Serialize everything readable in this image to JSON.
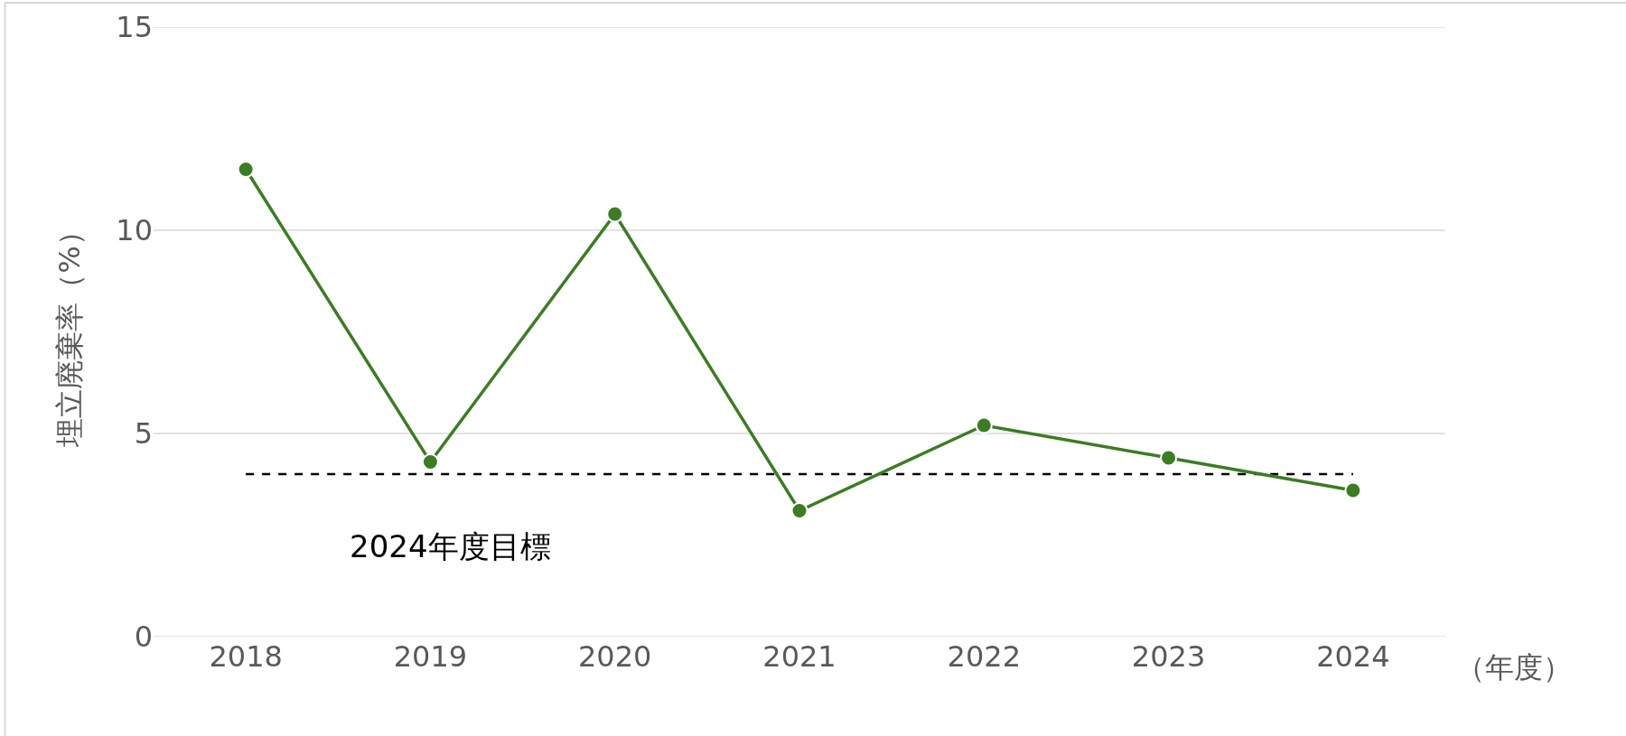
{
  "chart_data": {
    "type": "line",
    "categories": [
      "2018",
      "2019",
      "2020",
      "2021",
      "2022",
      "2023",
      "2024"
    ],
    "series": [
      {
        "color": "#3a7d22",
        "values": [
          11.5,
          4.3,
          10.4,
          3.1,
          5.2,
          4.4,
          3.6
        ]
      }
    ],
    "ylabel": "埋立廃棄率（%）",
    "xlabel": "（年度）",
    "ylim": [
      0,
      15
    ],
    "yticks": [
      0,
      5,
      10,
      15
    ],
    "grid": "y",
    "marker": "circle",
    "line_style": "solid",
    "legend": false,
    "ref_lines": [
      {
        "axis": "y",
        "value": 4.0,
        "label": "2024年度目標",
        "color": "#000000",
        "line_style": "dashed"
      }
    ]
  }
}
